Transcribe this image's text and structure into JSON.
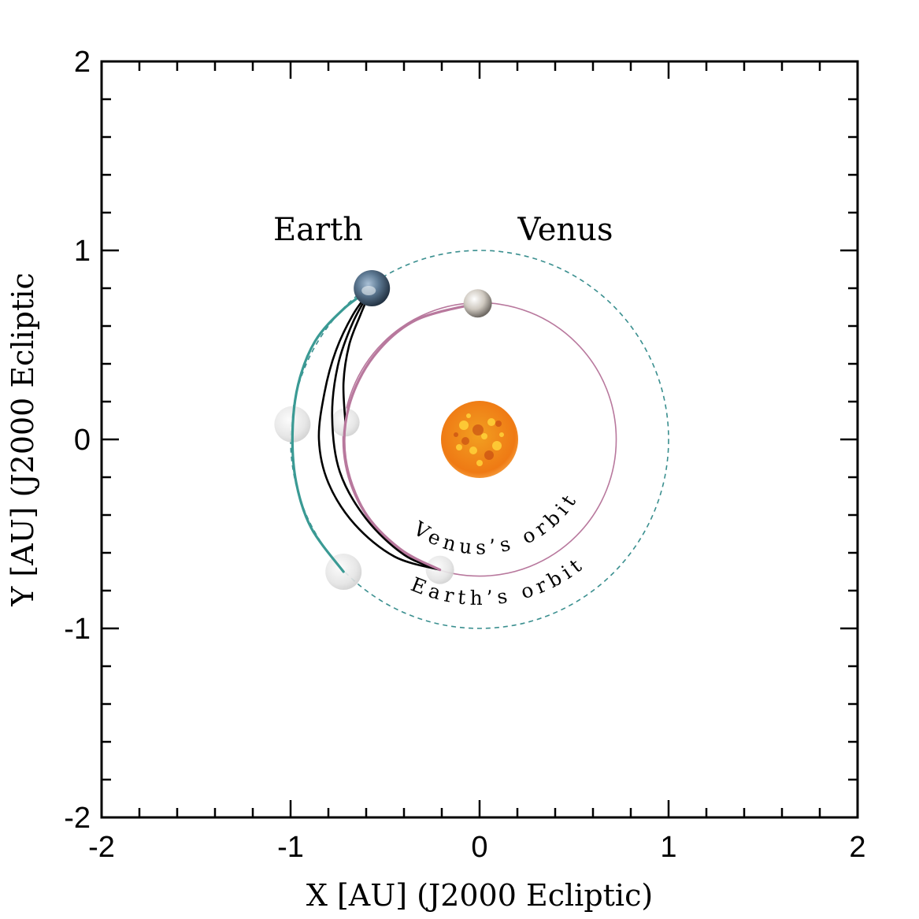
{
  "chart_data": {
    "type": "scatter",
    "title": "",
    "xlabel": "X [AU] (J2000 Ecliptic)",
    "ylabel": "Y [AU] (J2000 Ecliptic",
    "xlim": [
      -2,
      2
    ],
    "ylim": [
      -2,
      2
    ],
    "x_ticks": [
      -2,
      -1,
      0,
      1,
      2
    ],
    "y_ticks": [
      -2,
      -1,
      0,
      1,
      2
    ],
    "x_tick_labels": [
      "-2",
      "-1",
      "0",
      "1",
      "2"
    ],
    "y_tick_labels": [
      "-2",
      "-1",
      "0",
      "1",
      "2"
    ],
    "minor_tick_step": 0.2,
    "grid": false,
    "labels": {
      "earth": "Earth",
      "venus": "Venus",
      "venus_orbit": "Venus’s orbit",
      "earth_orbit": "Earth’s orbit"
    },
    "sun": {
      "x": 0.0,
      "y": 0.0
    },
    "orbits": {
      "earth": {
        "center": [
          0.0,
          0.0
        ],
        "radius": 1.0,
        "style": "dashed",
        "color": "#3a8f8f"
      },
      "venus": {
        "center": [
          0.0,
          0.0
        ],
        "radius": 0.723,
        "style": "solid",
        "color": "#b8789d"
      }
    },
    "bodies": {
      "earth_current": {
        "x": -0.57,
        "y": 0.8
      },
      "venus_current": {
        "x": -0.01,
        "y": 0.72
      },
      "ghosts": [
        {
          "kind": "earth",
          "x": -0.99,
          "y": 0.08
        },
        {
          "kind": "venus",
          "x": -0.71,
          "y": 0.09
        },
        {
          "kind": "earth",
          "x": -0.72,
          "y": -0.7
        },
        {
          "kind": "venus",
          "x": -0.21,
          "y": -0.69
        }
      ]
    },
    "series": [
      {
        "color": "#3a9a94",
        "x": [
          -0.57,
          -0.72,
          -0.87,
          -0.96,
          -0.99,
          -0.97,
          -0.89,
          -0.72
        ],
        "y": [
          0.8,
          0.69,
          0.52,
          0.29,
          0.03,
          -0.23,
          -0.47,
          -0.7
        ]
      },
      {
        "color": "#000000",
        "x": [
          -0.57,
          -0.67,
          -0.76,
          -0.82,
          -0.85,
          -0.8,
          -0.66,
          -0.45,
          -0.21
        ],
        "y": [
          0.8,
          0.66,
          0.47,
          0.25,
          0.0,
          -0.23,
          -0.45,
          -0.62,
          -0.69
        ]
      },
      {
        "color": "#000000",
        "x": [
          -0.57,
          -0.63,
          -0.69,
          -0.72,
          -0.71
        ],
        "y": [
          0.8,
          0.66,
          0.5,
          0.3,
          0.09
        ]
      },
      {
        "color": "#000000",
        "x": [
          -0.57,
          -0.67,
          -0.75,
          -0.78,
          -0.74,
          -0.6,
          -0.4,
          -0.21
        ],
        "y": [
          0.8,
          0.62,
          0.39,
          0.12,
          -0.17,
          -0.42,
          -0.61,
          -0.69
        ]
      },
      {
        "color": "#b8789d",
        "x": [
          -0.21,
          -0.42,
          -0.61,
          -0.71,
          -0.69,
          -0.56,
          -0.34,
          -0.01
        ],
        "y": [
          -0.69,
          -0.58,
          -0.38,
          -0.1,
          0.18,
          0.44,
          0.63,
          0.72
        ]
      }
    ]
  }
}
